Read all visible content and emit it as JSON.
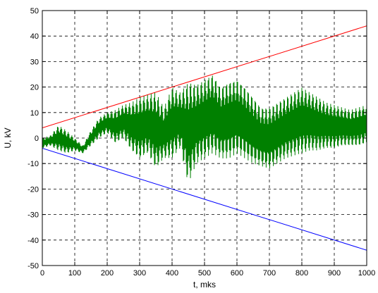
{
  "chart_data": {
    "type": "line",
    "title": "",
    "xlabel": "t, mks",
    "ylabel": "U, kV",
    "xlim": [
      0,
      1000
    ],
    "ylim": [
      -50,
      50
    ],
    "xticks": [
      0,
      100,
      200,
      300,
      400,
      500,
      600,
      700,
      800,
      900,
      1000
    ],
    "yticks": [
      -50,
      -40,
      -30,
      -20,
      -10,
      0,
      10,
      20,
      30,
      40,
      50
    ],
    "xtick_labels": [
      "0",
      "100",
      "200",
      "300",
      "400",
      "500",
      "600",
      "700",
      "800",
      "900",
      "1000"
    ],
    "ytick_labels": [
      "-50",
      "-40",
      "-30",
      "-20",
      "-10",
      "0",
      "10",
      "20",
      "30",
      "40",
      "50"
    ],
    "grid": true,
    "grid_style": "dashed",
    "legend": "none",
    "series": [
      {
        "color": "#ff0000",
        "x": [
          0,
          1000
        ],
        "y": [
          4,
          44
        ]
      },
      {
        "color": "#0000ff",
        "x": [
          0,
          1000
        ],
        "y": [
          -4,
          -44
        ]
      },
      {
        "color": "#008000",
        "style": "dense-oscillation",
        "x": [
          0,
          25,
          50,
          75,
          100,
          125,
          150,
          175,
          200,
          225,
          250,
          275,
          300,
          325,
          350,
          375,
          400,
          425,
          450,
          475,
          500,
          525,
          550,
          575,
          600,
          625,
          650,
          675,
          700,
          725,
          750,
          775,
          800,
          825,
          850,
          875,
          900,
          925,
          950,
          975,
          1000
        ],
        "upper": [
          0,
          1,
          5,
          3,
          0,
          -3,
          3,
          8,
          10,
          11,
          13,
          14,
          16,
          17,
          18,
          12,
          20,
          18,
          22,
          21,
          23,
          25,
          20,
          22,
          23,
          20,
          16,
          12,
          12,
          14,
          16,
          18,
          20,
          18,
          16,
          14,
          13,
          12,
          11,
          12,
          13
        ],
        "lower": [
          -4,
          -3,
          -5,
          -6,
          -5,
          -6,
          -3,
          0,
          2,
          -2,
          0,
          -5,
          -8,
          -6,
          -12,
          -8,
          -8,
          -4,
          -18,
          -10,
          -8,
          -6,
          -8,
          -8,
          -6,
          -8,
          -10,
          -11,
          -12,
          -10,
          -8,
          -7,
          -6,
          -5,
          -5,
          -4,
          -4,
          -3,
          -3,
          -3,
          -2
        ]
      }
    ]
  }
}
